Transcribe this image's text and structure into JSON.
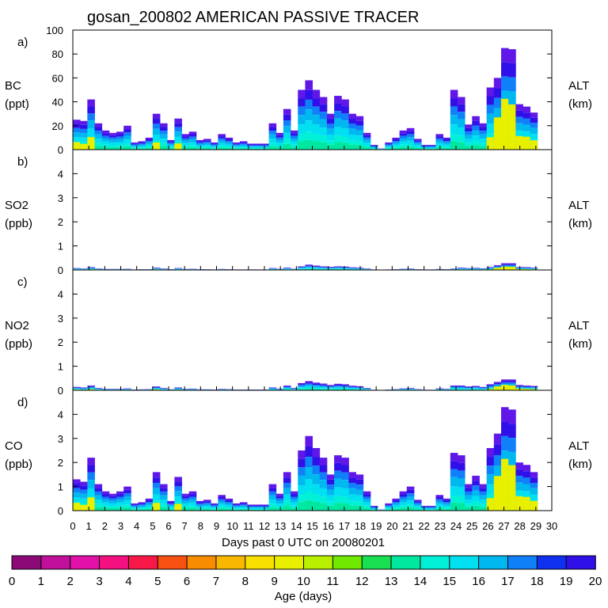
{
  "chart_data": {
    "type": "area",
    "title": "gosan_200802 AMERICAN PASSIVE TRACER",
    "xlabel": "Days past 0 UTC on 20080201",
    "x_ticks": [
      "0",
      "1",
      "2",
      "3",
      "4",
      "5",
      "6",
      "7",
      "8",
      "9",
      "10",
      "11",
      "12",
      "13",
      "14",
      "15",
      "16",
      "17",
      "18",
      "19",
      "20",
      "21",
      "22",
      "23",
      "24",
      "25",
      "26",
      "27",
      "28",
      "29",
      "30"
    ],
    "xlim": [
      0,
      30
    ],
    "right_label": [
      "ALT",
      "(km)"
    ],
    "panels": [
      {
        "tag": "a)",
        "species": "BC",
        "unit": "(ppt)",
        "ylim": [
          0,
          100
        ],
        "y_ticks": [
          "0",
          "20",
          "40",
          "60",
          "80",
          "100"
        ],
        "totals": [
          25,
          24,
          42,
          22,
          16,
          14,
          15,
          20,
          6,
          7,
          10,
          30,
          22,
          8,
          26,
          13,
          15,
          8,
          9,
          6,
          13,
          10,
          6,
          7,
          5,
          5,
          5,
          22,
          14,
          34,
          16,
          50,
          58,
          50,
          44,
          30,
          45,
          42,
          30,
          28,
          14,
          4,
          1,
          6,
          10,
          16,
          18,
          9,
          4,
          4,
          13,
          10,
          50,
          44,
          21,
          28,
          22,
          52,
          60,
          85,
          84,
          38,
          36,
          31
        ],
        "young_frac": [
          0.25,
          0.2,
          0.25,
          0.15,
          0.1,
          0.1,
          0.1,
          0.15,
          0.1,
          0.1,
          0.1,
          0.2,
          0.15,
          0.1,
          0.2,
          0.1,
          0.1,
          0.1,
          0.1,
          0.1,
          0.1,
          0.1,
          0.1,
          0.1,
          0.1,
          0.1,
          0.1,
          0.15,
          0.1,
          0.15,
          0.1,
          0.1,
          0.12,
          0.1,
          0.1,
          0.1,
          0.1,
          0.1,
          0.1,
          0.1,
          0.1,
          0.1,
          0.1,
          0.1,
          0.1,
          0.1,
          0.1,
          0.1,
          0.1,
          0.1,
          0.1,
          0.1,
          0.15,
          0.15,
          0.15,
          0.15,
          0.15,
          0.2,
          0.45,
          0.5,
          0.45,
          0.3,
          0.3,
          0.25
        ]
      },
      {
        "tag": "b)",
        "species": "SO2",
        "unit": "(ppb)",
        "ylim": [
          0,
          5
        ],
        "y_ticks": [
          "0",
          "1",
          "2",
          "3",
          "4"
        ],
        "totals": [
          0.08,
          0.06,
          0.12,
          0.06,
          0.04,
          0.04,
          0.04,
          0.05,
          0.02,
          0.03,
          0.03,
          0.1,
          0.06,
          0.03,
          0.08,
          0.04,
          0.05,
          0.03,
          0.03,
          0.02,
          0.04,
          0.03,
          0.02,
          0.02,
          0.02,
          0.02,
          0.02,
          0.08,
          0.05,
          0.1,
          0.05,
          0.15,
          0.22,
          0.18,
          0.15,
          0.13,
          0.15,
          0.14,
          0.11,
          0.1,
          0.06,
          0.02,
          0,
          0.02,
          0.03,
          0.05,
          0.06,
          0.03,
          0.02,
          0.02,
          0.04,
          0.03,
          0.06,
          0.1,
          0.08,
          0.09,
          0.07,
          0.12,
          0.2,
          0.28,
          0.28,
          0.12,
          0.12,
          0.1
        ],
        "young_frac": [
          0.2,
          0.2,
          0.2,
          0.15,
          0.1,
          0.1,
          0.1,
          0.15,
          0.1,
          0.1,
          0.1,
          0.2,
          0.15,
          0.1,
          0.2,
          0.1,
          0.1,
          0.1,
          0.1,
          0.1,
          0.1,
          0.1,
          0.1,
          0.1,
          0.1,
          0.1,
          0.1,
          0.15,
          0.1,
          0.15,
          0.1,
          0.1,
          0.12,
          0.1,
          0.1,
          0.1,
          0.1,
          0.1,
          0.1,
          0.1,
          0.1,
          0.1,
          0.1,
          0.1,
          0.1,
          0.1,
          0.1,
          0.1,
          0.1,
          0.1,
          0.1,
          0.1,
          0.15,
          0.15,
          0.15,
          0.15,
          0.15,
          0.2,
          0.45,
          0.5,
          0.45,
          0.3,
          0.3,
          0.25
        ]
      },
      {
        "tag": "c)",
        "species": "NO2",
        "unit": "(ppb)",
        "ylim": [
          0,
          5
        ],
        "y_ticks": [
          "0",
          "1",
          "2",
          "3",
          "4"
        ],
        "totals": [
          0.14,
          0.12,
          0.2,
          0.1,
          0.06,
          0.06,
          0.06,
          0.08,
          0.03,
          0.04,
          0.05,
          0.16,
          0.1,
          0.04,
          0.12,
          0.06,
          0.07,
          0.04,
          0.04,
          0.03,
          0.06,
          0.05,
          0.03,
          0.03,
          0.03,
          0.03,
          0.03,
          0.12,
          0.07,
          0.2,
          0.1,
          0.3,
          0.38,
          0.32,
          0.28,
          0.22,
          0.27,
          0.25,
          0.19,
          0.17,
          0.1,
          0.02,
          0,
          0.03,
          0.05,
          0.08,
          0.1,
          0.05,
          0.02,
          0.02,
          0.08,
          0.06,
          0.2,
          0.2,
          0.16,
          0.18,
          0.14,
          0.25,
          0.35,
          0.45,
          0.45,
          0.22,
          0.2,
          0.18
        ],
        "young_frac": [
          0.2,
          0.2,
          0.2,
          0.15,
          0.1,
          0.1,
          0.1,
          0.15,
          0.1,
          0.1,
          0.1,
          0.2,
          0.15,
          0.1,
          0.2,
          0.1,
          0.1,
          0.1,
          0.1,
          0.1,
          0.1,
          0.1,
          0.1,
          0.1,
          0.1,
          0.1,
          0.1,
          0.15,
          0.1,
          0.15,
          0.1,
          0.1,
          0.12,
          0.1,
          0.1,
          0.1,
          0.1,
          0.1,
          0.1,
          0.1,
          0.1,
          0.1,
          0.1,
          0.1,
          0.1,
          0.1,
          0.1,
          0.1,
          0.1,
          0.1,
          0.1,
          0.1,
          0.15,
          0.15,
          0.15,
          0.15,
          0.15,
          0.2,
          0.45,
          0.5,
          0.45,
          0.3,
          0.3,
          0.25
        ]
      },
      {
        "tag": "d)",
        "species": "CO",
        "unit": "(ppb)",
        "ylim": [
          0,
          5
        ],
        "y_ticks": [
          "0",
          "1",
          "2",
          "3",
          "4"
        ],
        "totals": [
          1.3,
          1.2,
          2.2,
          1.1,
          0.8,
          0.7,
          0.8,
          1.0,
          0.3,
          0.35,
          0.5,
          1.6,
          1.1,
          0.4,
          1.4,
          0.7,
          0.8,
          0.4,
          0.45,
          0.3,
          0.65,
          0.5,
          0.3,
          0.35,
          0.25,
          0.25,
          0.25,
          1.1,
          0.7,
          1.6,
          0.8,
          2.5,
          3.1,
          2.6,
          2.2,
          1.5,
          2.3,
          2.2,
          1.6,
          1.5,
          0.8,
          0.2,
          0.05,
          0.3,
          0.5,
          0.8,
          1.0,
          0.45,
          0.2,
          0.2,
          0.65,
          0.5,
          2.4,
          2.3,
          1.1,
          1.45,
          1.1,
          2.6,
          3.2,
          4.3,
          4.2,
          2.0,
          1.9,
          1.6
        ],
        "young_frac": [
          0.25,
          0.2,
          0.25,
          0.15,
          0.1,
          0.1,
          0.1,
          0.15,
          0.1,
          0.1,
          0.1,
          0.2,
          0.15,
          0.1,
          0.2,
          0.1,
          0.1,
          0.1,
          0.1,
          0.1,
          0.1,
          0.1,
          0.1,
          0.1,
          0.1,
          0.1,
          0.1,
          0.15,
          0.1,
          0.15,
          0.1,
          0.1,
          0.12,
          0.1,
          0.1,
          0.1,
          0.1,
          0.1,
          0.1,
          0.1,
          0.1,
          0.1,
          0.1,
          0.1,
          0.1,
          0.1,
          0.1,
          0.1,
          0.1,
          0.1,
          0.1,
          0.1,
          0.15,
          0.15,
          0.15,
          0.15,
          0.15,
          0.2,
          0.45,
          0.5,
          0.45,
          0.3,
          0.3,
          0.25
        ]
      }
    ],
    "colorbar": {
      "label": "Age (days)",
      "ticks": [
        "0",
        "1",
        "2",
        "3",
        "4",
        "5",
        "6",
        "7",
        "8",
        "9",
        "10",
        "11",
        "12",
        "13",
        "14",
        "15",
        "16",
        "17",
        "18",
        "19",
        "20"
      ],
      "colors": [
        "#8c0a78",
        "#c0109c",
        "#e010a8",
        "#f51080",
        "#f81848",
        "#f85010",
        "#f88c00",
        "#f8b800",
        "#f8e000",
        "#e8f000",
        "#b8f000",
        "#70e800",
        "#18e050",
        "#00e8a0",
        "#00f0d8",
        "#00e0f0",
        "#00b8f0",
        "#1080f8",
        "#1030f0",
        "#3010e8",
        "#6018e8"
      ]
    }
  }
}
